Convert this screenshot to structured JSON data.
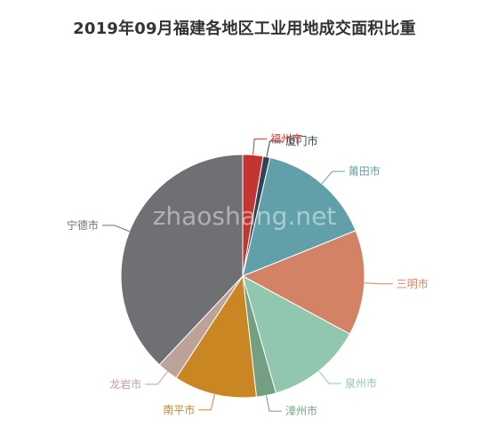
{
  "chart_data": {
    "type": "pie",
    "title": "2019年09月福建各地区工业用地成交面积比重",
    "slices": [
      {
        "label": "福州市",
        "value": 2.7,
        "color": "#c23531"
      },
      {
        "label": "厦门市",
        "value": 0.9,
        "color": "#2f4554"
      },
      {
        "label": "莆田市",
        "value": 15.3,
        "color": "#61a0a8"
      },
      {
        "label": "三明市",
        "value": 14.0,
        "color": "#d48265"
      },
      {
        "label": "泉州市",
        "value": 12.7,
        "color": "#91c7ae"
      },
      {
        "label": "漳州市",
        "value": 2.6,
        "color": "#749f83"
      },
      {
        "label": "南平市",
        "value": 11.0,
        "color": "#ca8622"
      },
      {
        "label": "龙岩市",
        "value": 2.8,
        "color": "#bda29a"
      },
      {
        "label": "宁德市",
        "value": 38.0,
        "color": "#6e7074"
      }
    ],
    "start_angle_deg": 90,
    "direction": "clockwise",
    "watermark": "zhaoshang.net"
  }
}
